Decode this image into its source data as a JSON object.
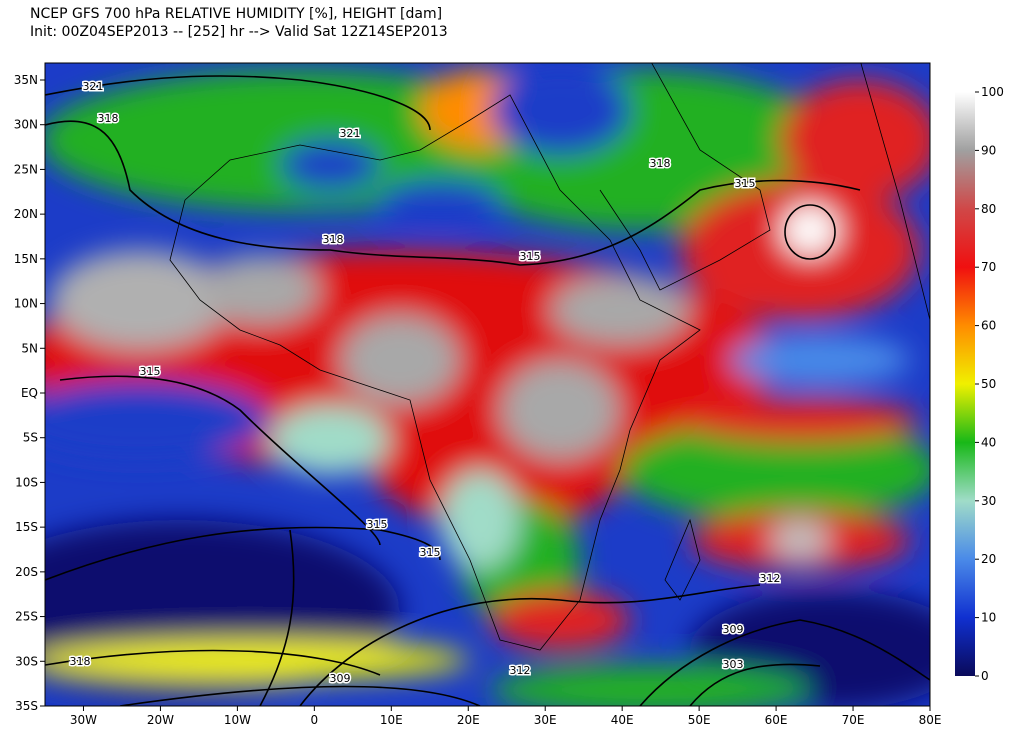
{
  "header": {
    "title": "NCEP GFS 700 hPa RELATIVE HUMIDITY [%], HEIGHT [dam]",
    "subtitle": "Init: 00Z04SEP2013 -- [252] hr --> Valid Sat 12Z14SEP2013"
  },
  "map": {
    "lonlim": [
      -35,
      80
    ],
    "latlim": [
      -35,
      36.9
    ],
    "lat_ticks": [
      {
        "value": 35,
        "label": "35N"
      },
      {
        "value": 30,
        "label": "30N"
      },
      {
        "value": 25,
        "label": "25N"
      },
      {
        "value": 20,
        "label": "20N"
      },
      {
        "value": 15,
        "label": "15N"
      },
      {
        "value": 10,
        "label": "10N"
      },
      {
        "value": 5,
        "label": "5N"
      },
      {
        "value": 0,
        "label": "EQ"
      },
      {
        "value": -5,
        "label": "5S"
      },
      {
        "value": -10,
        "label": "10S"
      },
      {
        "value": -15,
        "label": "15S"
      },
      {
        "value": -20,
        "label": "20S"
      },
      {
        "value": -25,
        "label": "25S"
      },
      {
        "value": -30,
        "label": "30S"
      },
      {
        "value": -35,
        "label": "35S"
      }
    ],
    "lon_ticks": [
      {
        "value": -30,
        "label": "30W"
      },
      {
        "value": -20,
        "label": "20W"
      },
      {
        "value": -10,
        "label": "10W"
      },
      0,
      {
        "value": 10,
        "label": "10E"
      },
      {
        "value": 20,
        "label": "20E"
      },
      {
        "value": 30,
        "label": "30E"
      },
      {
        "value": 40,
        "label": "40E"
      },
      {
        "value": 50,
        "label": "50E"
      },
      {
        "value": 60,
        "label": "60E"
      },
      {
        "value": 70,
        "label": "70E"
      },
      {
        "value": 80,
        "label": "80E"
      }
    ],
    "contour_labels": [
      321,
      318,
      321,
      318,
      315,
      318,
      315,
      315,
      315,
      315,
      318,
      309,
      312,
      312,
      309,
      303
    ]
  },
  "colorbar": {
    "range": [
      0,
      100
    ],
    "ticks": [
      0,
      10,
      20,
      30,
      40,
      50,
      60,
      70,
      80,
      90,
      100
    ],
    "colors": [
      "#0a0a5a",
      "#1030d0",
      "#4a8ae8",
      "#a0dcc8",
      "#18b818",
      "#f0f000",
      "#ff8c00",
      "#f01010",
      "#d04848",
      "#a0a0a0",
      "#ffffff"
    ]
  }
}
